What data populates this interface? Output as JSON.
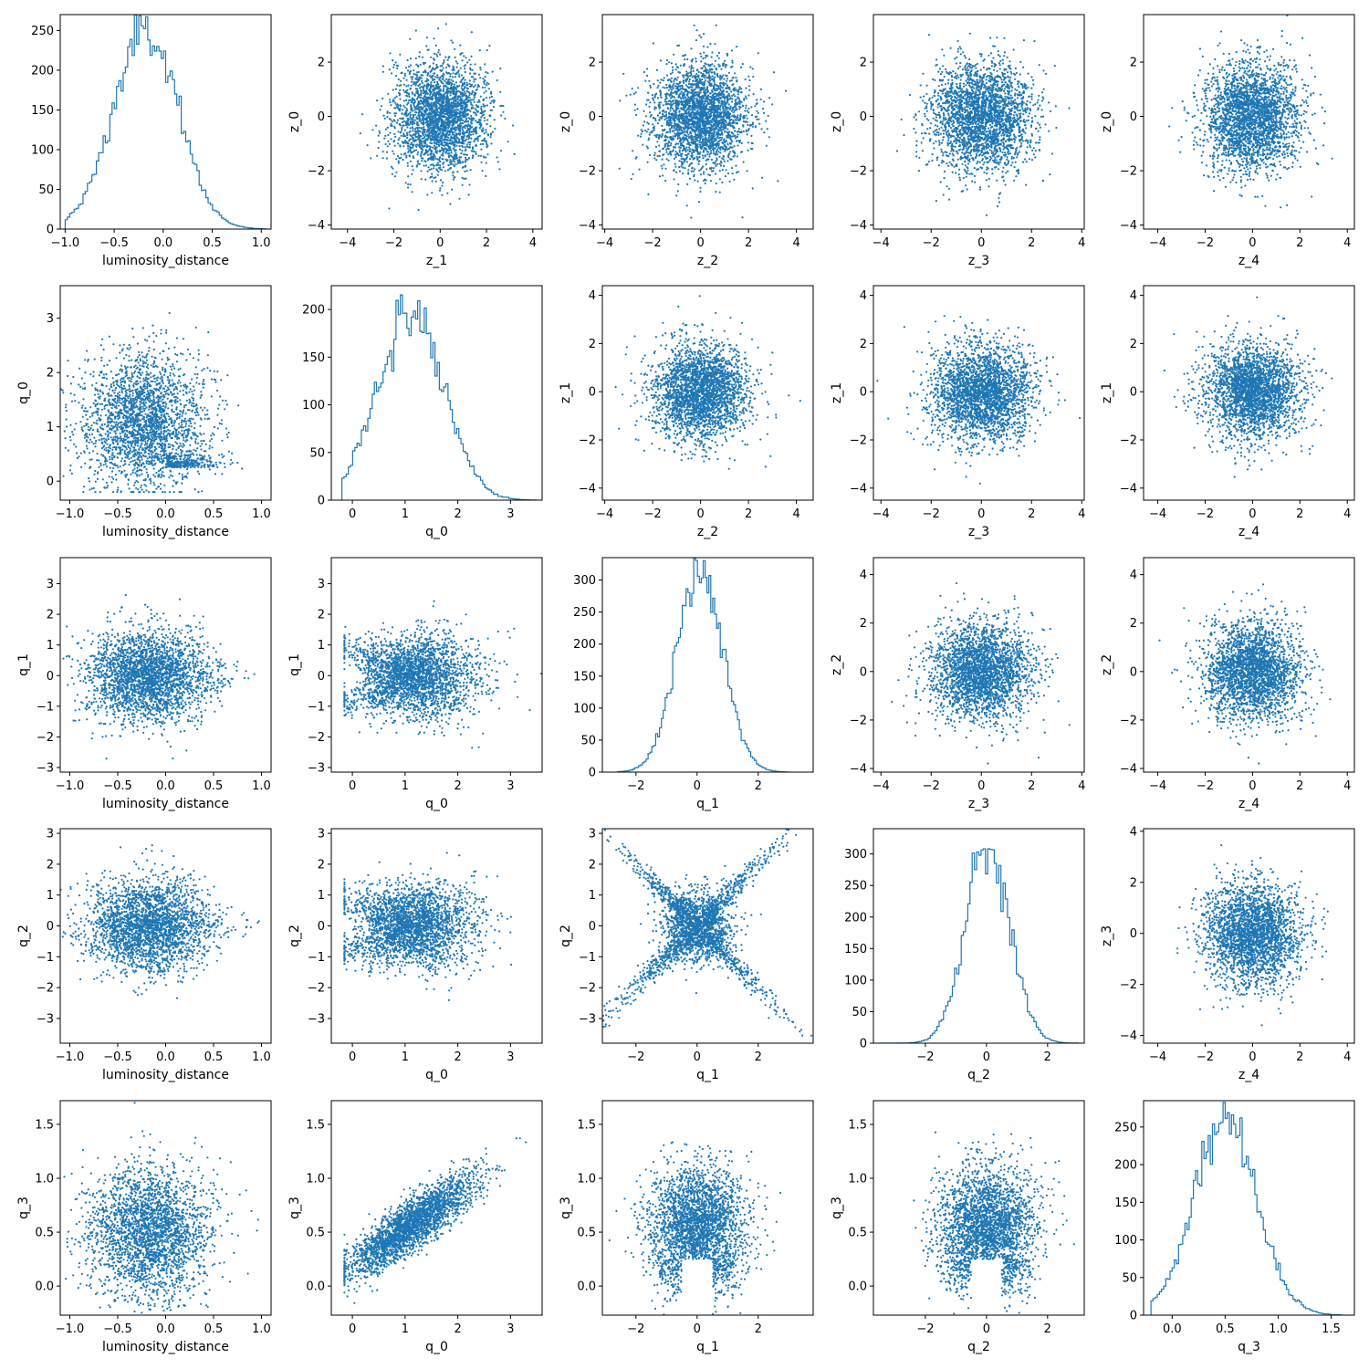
{
  "figure": {
    "color": "#1f77b4"
  },
  "chart_data": [
    {
      "type": "histogram",
      "row": 0,
      "col": 0,
      "xlabel": "luminosity_distance",
      "ylabel": "",
      "xlim": [
        -1.05,
        1.1
      ],
      "ylim": [
        0,
        270
      ],
      "xticks": [
        "-1.0",
        "-0.5",
        "0.0",
        "0.5",
        "1.0"
      ],
      "yticks": [
        "0",
        "50",
        "100",
        "150",
        "200",
        "250"
      ],
      "dist": {
        "kind": "normal",
        "mu": -0.18,
        "sd": 0.33,
        "peak": 248,
        "lo": -1.0,
        "hi": 1.05,
        "bins": 90
      }
    },
    {
      "type": "scatter",
      "row": 0,
      "col": 1,
      "xlabel": "z_1",
      "ylabel": "z_0",
      "xlim": [
        -4.7,
        4.4
      ],
      "ylim": [
        -4.15,
        3.75
      ],
      "xticks": [
        "-4",
        "-2",
        "0",
        "2",
        "4"
      ],
      "yticks": [
        "-4",
        "-2",
        "0",
        "2"
      ],
      "cloud": {
        "kind": "gauss",
        "cx": 0,
        "cy": 0,
        "sx": 1,
        "sy": 1
      }
    },
    {
      "type": "scatter",
      "row": 0,
      "col": 2,
      "xlabel": "z_2",
      "ylabel": "z_0",
      "xlim": [
        -4.1,
        4.7
      ],
      "ylim": [
        -4.15,
        3.75
      ],
      "xticks": [
        "-4",
        "-2",
        "0",
        "2",
        "4"
      ],
      "yticks": [
        "-4",
        "-2",
        "0",
        "2"
      ],
      "cloud": {
        "kind": "gauss",
        "cx": 0,
        "cy": 0,
        "sx": 1,
        "sy": 1
      }
    },
    {
      "type": "scatter",
      "row": 0,
      "col": 3,
      "xlabel": "z_3",
      "ylabel": "z_0",
      "xlim": [
        -4.3,
        4.1
      ],
      "ylim": [
        -4.15,
        3.75
      ],
      "xticks": [
        "-4",
        "-2",
        "0",
        "2",
        "4"
      ],
      "yticks": [
        "-4",
        "-2",
        "0",
        "2"
      ],
      "cloud": {
        "kind": "gauss",
        "cx": 0,
        "cy": 0,
        "sx": 1,
        "sy": 1
      }
    },
    {
      "type": "scatter",
      "row": 0,
      "col": 4,
      "xlabel": "z_4",
      "ylabel": "z_0",
      "xlim": [
        -4.6,
        4.3
      ],
      "ylim": [
        -4.15,
        3.75
      ],
      "xticks": [
        "-4",
        "-2",
        "0",
        "2",
        "4"
      ],
      "yticks": [
        "-4",
        "-2",
        "0",
        "2"
      ],
      "cloud": {
        "kind": "gauss",
        "cx": 0,
        "cy": 0,
        "sx": 1,
        "sy": 1
      }
    },
    {
      "type": "scatter",
      "row": 1,
      "col": 0,
      "xlabel": "luminosity_distance",
      "ylabel": "q_0",
      "xlim": [
        -1.1,
        1.1
      ],
      "ylim": [
        -0.35,
        3.6
      ],
      "xticks": [
        "-1.0",
        "-0.5",
        "0.0",
        "0.5",
        "1.0"
      ],
      "yticks": [
        "0",
        "1",
        "2",
        "3"
      ],
      "cloud": {
        "kind": "ld_q0"
      }
    },
    {
      "type": "histogram",
      "row": 1,
      "col": 1,
      "xlabel": "q_0",
      "ylabel": "",
      "xlim": [
        -0.4,
        3.6
      ],
      "ylim": [
        0,
        225
      ],
      "xticks": [
        "0",
        "1",
        "2",
        "3"
      ],
      "yticks": [
        "0",
        "50",
        "100",
        "150",
        "200"
      ],
      "dist": {
        "kind": "normal",
        "mu": 1.1,
        "sd": 0.62,
        "peak": 200,
        "lo": -0.2,
        "hi": 3.5,
        "bins": 90
      }
    },
    {
      "type": "scatter",
      "row": 1,
      "col": 2,
      "xlabel": "z_2",
      "ylabel": "z_1",
      "xlim": [
        -4.1,
        4.7
      ],
      "ylim": [
        -4.5,
        4.4
      ],
      "xticks": [
        "-4",
        "-2",
        "0",
        "2",
        "4"
      ],
      "yticks": [
        "-4",
        "-2",
        "0",
        "2",
        "4"
      ],
      "cloud": {
        "kind": "gauss",
        "cx": 0,
        "cy": 0,
        "sx": 1,
        "sy": 1
      }
    },
    {
      "type": "scatter",
      "row": 1,
      "col": 3,
      "xlabel": "z_3",
      "ylabel": "z_1",
      "xlim": [
        -4.3,
        4.1
      ],
      "ylim": [
        -4.5,
        4.4
      ],
      "xticks": [
        "-4",
        "-2",
        "0",
        "2",
        "4"
      ],
      "yticks": [
        "-4",
        "-2",
        "0",
        "2",
        "4"
      ],
      "cloud": {
        "kind": "gauss",
        "cx": 0,
        "cy": 0,
        "sx": 1,
        "sy": 1
      }
    },
    {
      "type": "scatter",
      "row": 1,
      "col": 4,
      "xlabel": "z_4",
      "ylabel": "z_1",
      "xlim": [
        -4.6,
        4.3
      ],
      "ylim": [
        -4.5,
        4.4
      ],
      "xticks": [
        "-4",
        "-2",
        "0",
        "2",
        "4"
      ],
      "yticks": [
        "-4",
        "-2",
        "0",
        "2",
        "4"
      ],
      "cloud": {
        "kind": "gauss",
        "cx": 0,
        "cy": 0,
        "sx": 1,
        "sy": 1
      }
    },
    {
      "type": "scatter",
      "row": 2,
      "col": 0,
      "xlabel": "luminosity_distance",
      "ylabel": "q_1",
      "xlim": [
        -1.1,
        1.1
      ],
      "ylim": [
        -3.15,
        3.85
      ],
      "xticks": [
        "-1.0",
        "-0.5",
        "0.0",
        "0.5",
        "1.0"
      ],
      "yticks": [
        "-3",
        "-2",
        "-1",
        "0",
        "1",
        "2",
        "3"
      ],
      "cloud": {
        "kind": "ld_qx"
      }
    },
    {
      "type": "scatter",
      "row": 2,
      "col": 1,
      "xlabel": "q_0",
      "ylabel": "q_1",
      "xlim": [
        -0.4,
        3.6
      ],
      "ylim": [
        -3.15,
        3.85
      ],
      "xticks": [
        "0",
        "1",
        "2",
        "3"
      ],
      "yticks": [
        "-3",
        "-2",
        "-1",
        "0",
        "1",
        "2",
        "3"
      ],
      "cloud": {
        "kind": "q0_qx"
      }
    },
    {
      "type": "histogram",
      "row": 2,
      "col": 2,
      "xlabel": "q_1",
      "ylabel": "",
      "xlim": [
        -3.1,
        3.8
      ],
      "ylim": [
        0,
        335
      ],
      "xticks": [
        "-2",
        "0",
        "2"
      ],
      "yticks": [
        "0",
        "50",
        "100",
        "150",
        "200",
        "250",
        "300"
      ],
      "dist": {
        "kind": "normal",
        "mu": 0.1,
        "sd": 0.75,
        "peak": 315,
        "lo": -2.6,
        "hi": 3.0,
        "bins": 90
      }
    },
    {
      "type": "scatter",
      "row": 2,
      "col": 3,
      "xlabel": "z_3",
      "ylabel": "z_2",
      "xlim": [
        -4.3,
        4.1
      ],
      "ylim": [
        -4.15,
        4.7
      ],
      "xticks": [
        "-4",
        "-2",
        "0",
        "2",
        "4"
      ],
      "yticks": [
        "-4",
        "-2",
        "0",
        "2",
        "4"
      ],
      "cloud": {
        "kind": "gauss",
        "cx": 0,
        "cy": 0,
        "sx": 1,
        "sy": 1
      }
    },
    {
      "type": "scatter",
      "row": 2,
      "col": 4,
      "xlabel": "z_4",
      "ylabel": "z_2",
      "xlim": [
        -4.6,
        4.3
      ],
      "ylim": [
        -4.15,
        4.7
      ],
      "xticks": [
        "-4",
        "-2",
        "0",
        "2",
        "4"
      ],
      "yticks": [
        "-4",
        "-2",
        "0",
        "2",
        "4"
      ],
      "cloud": {
        "kind": "gauss",
        "cx": 0,
        "cy": 0,
        "sx": 1,
        "sy": 1
      }
    },
    {
      "type": "scatter",
      "row": 3,
      "col": 0,
      "xlabel": "luminosity_distance",
      "ylabel": "q_2",
      "xlim": [
        -1.1,
        1.1
      ],
      "ylim": [
        -3.8,
        3.15
      ],
      "xticks": [
        "-1.0",
        "-0.5",
        "0.0",
        "0.5",
        "1.0"
      ],
      "yticks": [
        "-3",
        "-2",
        "-1",
        "0",
        "1",
        "2",
        "3"
      ],
      "cloud": {
        "kind": "ld_qx"
      }
    },
    {
      "type": "scatter",
      "row": 3,
      "col": 1,
      "xlabel": "q_0",
      "ylabel": "q_2",
      "xlim": [
        -0.4,
        3.6
      ],
      "ylim": [
        -3.8,
        3.15
      ],
      "xticks": [
        "0",
        "1",
        "2",
        "3"
      ],
      "yticks": [
        "-3",
        "-2",
        "-1",
        "0",
        "1",
        "2",
        "3"
      ],
      "cloud": {
        "kind": "q0_qx"
      }
    },
    {
      "type": "scatter",
      "row": 3,
      "col": 2,
      "xlabel": "q_1",
      "ylabel": "q_2",
      "xlim": [
        -3.1,
        3.8
      ],
      "ylim": [
        -3.8,
        3.15
      ],
      "xticks": [
        "-2",
        "0",
        "2"
      ],
      "yticks": [
        "-3",
        "-2",
        "-1",
        "0",
        "1",
        "2",
        "3"
      ],
      "cloud": {
        "kind": "cross"
      }
    },
    {
      "type": "histogram",
      "row": 3,
      "col": 3,
      "xlabel": "q_2",
      "ylabel": "",
      "xlim": [
        -3.7,
        3.2
      ],
      "ylim": [
        0,
        340
      ],
      "xticks": [
        "-2",
        "0",
        "2"
      ],
      "yticks": [
        "0",
        "50",
        "100",
        "150",
        "200",
        "250",
        "300"
      ],
      "dist": {
        "kind": "normal",
        "mu": 0.05,
        "sd": 0.72,
        "peak": 318,
        "lo": -3.5,
        "hi": 3.0,
        "bins": 90
      }
    },
    {
      "type": "scatter",
      "row": 3,
      "col": 4,
      "xlabel": "z_4",
      "ylabel": "z_3",
      "xlim": [
        -4.6,
        4.3
      ],
      "ylim": [
        -4.3,
        4.1
      ],
      "xticks": [
        "-4",
        "-2",
        "0",
        "2",
        "4"
      ],
      "yticks": [
        "-4",
        "-2",
        "0",
        "2",
        "4"
      ],
      "cloud": {
        "kind": "gauss",
        "cx": 0,
        "cy": 0,
        "sx": 1,
        "sy": 1
      }
    },
    {
      "type": "scatter",
      "row": 4,
      "col": 0,
      "xlabel": "luminosity_distance",
      "ylabel": "q_3",
      "xlim": [
        -1.1,
        1.1
      ],
      "ylim": [
        -0.27,
        1.72
      ],
      "xticks": [
        "-1.0",
        "-0.5",
        "0.0",
        "0.5",
        "1.0"
      ],
      "yticks": [
        "0.0",
        "0.5",
        "1.0",
        "1.5"
      ],
      "cloud": {
        "kind": "ld_q3"
      }
    },
    {
      "type": "scatter",
      "row": 4,
      "col": 1,
      "xlabel": "q_0",
      "ylabel": "q_3",
      "xlim": [
        -0.4,
        3.6
      ],
      "ylim": [
        -0.27,
        1.72
      ],
      "xticks": [
        "0",
        "1",
        "2",
        "3"
      ],
      "yticks": [
        "0.0",
        "0.5",
        "1.0",
        "1.5"
      ],
      "cloud": {
        "kind": "q0_q3"
      }
    },
    {
      "type": "scatter",
      "row": 4,
      "col": 2,
      "xlabel": "q_1",
      "ylabel": "q_3",
      "xlim": [
        -3.1,
        3.8
      ],
      "ylim": [
        -0.27,
        1.72
      ],
      "xticks": [
        "-2",
        "0",
        "2"
      ],
      "yticks": [
        "0.0",
        "0.5",
        "1.0",
        "1.5"
      ],
      "cloud": {
        "kind": "qx_q3"
      }
    },
    {
      "type": "scatter",
      "row": 4,
      "col": 3,
      "xlabel": "q_2",
      "ylabel": "q_3",
      "xlim": [
        -3.7,
        3.2
      ],
      "ylim": [
        -0.27,
        1.72
      ],
      "xticks": [
        "-2",
        "0",
        "2"
      ],
      "yticks": [
        "0.0",
        "0.5",
        "1.0",
        "1.5"
      ],
      "cloud": {
        "kind": "qx_q3"
      }
    },
    {
      "type": "histogram",
      "row": 4,
      "col": 4,
      "xlabel": "q_3",
      "ylabel": "",
      "xlim": [
        -0.27,
        1.72
      ],
      "ylim": [
        0,
        285
      ],
      "xticks": [
        "0.0",
        "0.5",
        "1.0",
        "1.5"
      ],
      "yticks": [
        "0",
        "50",
        "100",
        "150",
        "200",
        "250"
      ],
      "dist": {
        "kind": "normal",
        "mu": 0.5,
        "sd": 0.3,
        "peak": 250,
        "lo": -0.2,
        "hi": 1.6,
        "bins": 90
      }
    }
  ]
}
